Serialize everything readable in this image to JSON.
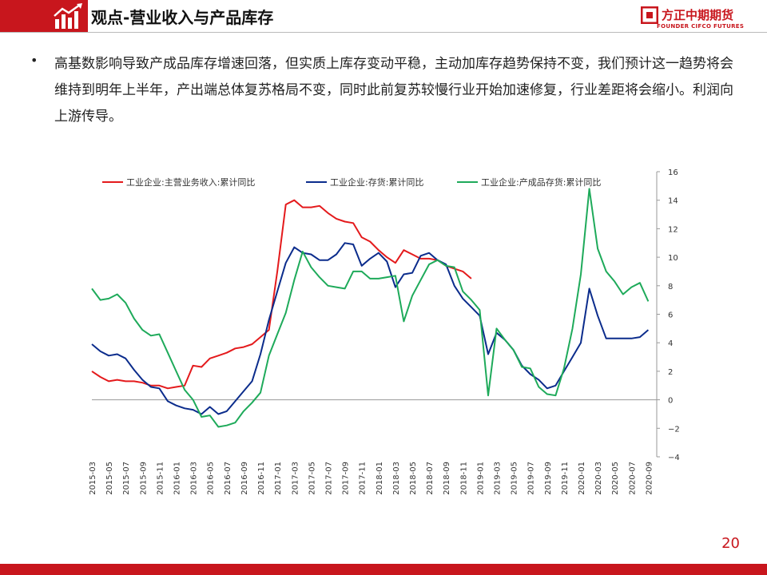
{
  "slide": {
    "title": "观点-营业收入与产品库存",
    "page_number": "20",
    "logo_cn": "方正中期期货",
    "logo_en": "FOUNDER CIFCO FUTURES",
    "bullet": "•",
    "body": "高基数影响导致产成品库存增速回落，但实质上库存变动平稳，主动加库存趋势保持不变，我们预计这一趋势将会维持到明年上半年，产出端总体复苏格局不变，同时此前复苏较慢行业开始加速修复，行业差距将会缩小。利润向上游传导。"
  },
  "colors": {
    "brand_red": "#c8161d",
    "series_red": "#e41a1c",
    "series_blue": "#0b2c8c",
    "series_green": "#1eaa5a"
  },
  "chart_data": {
    "type": "line",
    "x": [
      "2015-03",
      "2015-04",
      "2015-05",
      "2015-06",
      "2015-07",
      "2015-08",
      "2015-09",
      "2015-10",
      "2015-11",
      "2015-12",
      "2016-01",
      "2016-02",
      "2016-03",
      "2016-04",
      "2016-05",
      "2016-06",
      "2016-07",
      "2016-08",
      "2016-09",
      "2016-10",
      "2016-11",
      "2016-12",
      "2017-01",
      "2017-02",
      "2017-03",
      "2017-04",
      "2017-05",
      "2017-06",
      "2017-07",
      "2017-08",
      "2017-09",
      "2017-10",
      "2017-11",
      "2017-12",
      "2018-01",
      "2018-02",
      "2018-03",
      "2018-04",
      "2018-05",
      "2018-06",
      "2018-07",
      "2018-08",
      "2018-09",
      "2018-10",
      "2018-11",
      "2018-12",
      "2019-01",
      "2019-02",
      "2019-03",
      "2019-04",
      "2019-05",
      "2019-06",
      "2019-07",
      "2019-08",
      "2019-09",
      "2019-10",
      "2019-11",
      "2019-12",
      "2020-01",
      "2020-02",
      "2020-03",
      "2020-04",
      "2020-05",
      "2020-06",
      "2020-07",
      "2020-08",
      "2020-09",
      "2020-10"
    ],
    "x_tick_labels": [
      "2015-03",
      "2015-05",
      "2015-07",
      "2015-09",
      "2015-11",
      "2016-01",
      "2016-03",
      "2016-05",
      "2016-07",
      "2016-09",
      "2016-11",
      "2017-01",
      "2017-03",
      "2017-05",
      "2017-07",
      "2017-09",
      "2017-11",
      "2018-01",
      "2018-03",
      "2018-05",
      "2018-07",
      "2018-09",
      "2018-11",
      "2019-01",
      "2019-03",
      "2019-05",
      "2019-07",
      "2019-09",
      "2019-11",
      "2020-01",
      "2020-03",
      "2020-05",
      "2020-07",
      "2020-09"
    ],
    "ylim": [
      -4,
      16
    ],
    "y_ticks": [
      -4,
      -2,
      0,
      2,
      4,
      6,
      8,
      10,
      12,
      14,
      16
    ],
    "y_axis_side": "right",
    "legend_placement": "top",
    "grid": false,
    "series": [
      {
        "name": "工业企业:主营业务收入:累计同比",
        "color": "#e41a1c",
        "values": [
          2.0,
          1.6,
          1.3,
          1.4,
          1.3,
          1.3,
          1.2,
          1.0,
          1.0,
          0.8,
          0.9,
          1.0,
          2.4,
          2.3,
          2.9,
          3.1,
          3.3,
          3.6,
          3.7,
          3.9,
          4.4,
          4.9,
          9.0,
          13.7,
          14.0,
          13.5,
          13.5,
          13.6,
          13.1,
          12.7,
          12.5,
          12.4,
          11.4,
          11.1,
          10.5,
          10.0,
          9.6,
          10.5,
          10.2,
          9.9,
          9.9,
          9.8,
          9.4,
          9.2,
          9.0,
          8.5,
          null,
          null,
          null,
          null,
          null,
          null,
          null,
          null,
          null,
          null,
          null,
          null,
          null,
          null,
          null,
          null,
          null,
          null,
          null,
          null,
          null,
          null
        ]
      },
      {
        "name": "工业企业:存货:累计同比",
        "color": "#0b2c8c",
        "values": [
          3.9,
          3.4,
          3.1,
          3.2,
          2.9,
          2.1,
          1.4,
          0.9,
          0.8,
          -0.1,
          -0.4,
          -0.6,
          -0.7,
          -1.0,
          -0.5,
          -1.0,
          -0.8,
          -0.1,
          0.6,
          1.3,
          3.2,
          5.6,
          7.6,
          9.6,
          10.7,
          10.3,
          10.2,
          9.8,
          9.8,
          10.2,
          11.0,
          10.9,
          9.4,
          9.9,
          10.3,
          9.7,
          7.9,
          8.8,
          8.9,
          10.1,
          10.3,
          9.8,
          9.5,
          8.0,
          7.1,
          6.5,
          5.9,
          3.2,
          4.7,
          4.2,
          3.5,
          2.4,
          1.8,
          1.4,
          0.8,
          1.0,
          2.0,
          3.0,
          4.0,
          7.8,
          5.9,
          4.3,
          4.3,
          4.3,
          4.3,
          4.4,
          4.9,
          null
        ]
      },
      {
        "name": "工业企业:产成品存货:累计同比",
        "color": "#1eaa5a",
        "values": [
          7.8,
          7.0,
          7.1,
          7.4,
          6.8,
          5.7,
          4.9,
          4.5,
          4.6,
          3.3,
          2.0,
          0.7,
          0.0,
          -1.2,
          -1.1,
          -1.9,
          -1.8,
          -1.6,
          -0.8,
          -0.2,
          0.5,
          3.1,
          4.6,
          6.1,
          8.4,
          10.4,
          9.3,
          8.6,
          8.0,
          7.9,
          7.8,
          9.0,
          9.0,
          8.5,
          8.5,
          8.6,
          8.7,
          5.5,
          7.3,
          8.4,
          9.5,
          9.8,
          9.4,
          9.3,
          7.6,
          7.0,
          6.3,
          0.3,
          5.0,
          4.2,
          3.5,
          2.3,
          2.2,
          0.9,
          0.4,
          0.3,
          2.2,
          5.0,
          8.8,
          14.8,
          10.6,
          9.0,
          8.3,
          7.4,
          7.9,
          8.2,
          6.9,
          null
        ]
      }
    ]
  }
}
